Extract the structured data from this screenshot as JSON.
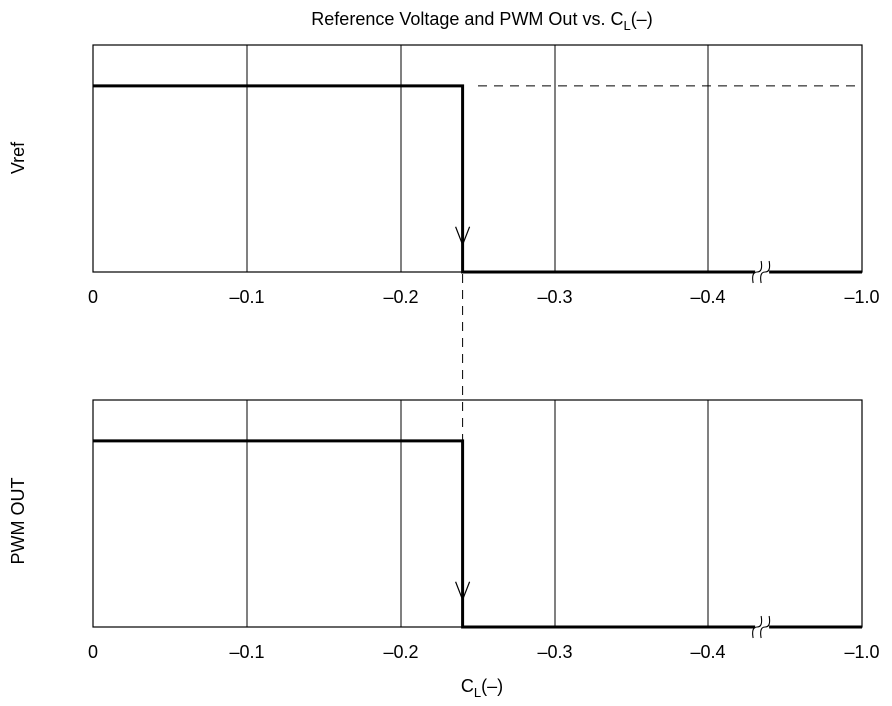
{
  "chart_data": {
    "type": "line",
    "title": {
      "main": "Reference Voltage and PWM Out vs. C",
      "sub": "L",
      "tail": "(–)"
    },
    "xlabel": {
      "main": "C",
      "sub": "L",
      "tail": "(–)"
    },
    "x_ticks": [
      "0",
      "–0.1",
      "–0.2",
      "–0.3",
      "–0.4",
      "–1.0"
    ],
    "x_tick_values": [
      0,
      -0.1,
      -0.2,
      -0.3,
      -0.4,
      -1.0
    ],
    "axis_break_between": [
      -0.4,
      -1.0
    ],
    "grid": true,
    "step_at_x": -0.24,
    "panels": [
      {
        "ylabel": "Vref",
        "ylim": [
          0,
          1
        ],
        "series": [
          {
            "style": "solid",
            "points": [
              [
                0,
                0.82
              ],
              [
                -0.24,
                0.82
              ],
              [
                -0.24,
                0
              ],
              [
                -1.0,
                0
              ]
            ]
          },
          {
            "style": "dashed",
            "points": [
              [
                -0.25,
                0.82
              ],
              [
                -1.0,
                0.82
              ]
            ]
          }
        ]
      },
      {
        "ylabel": "PWM OUT",
        "ylim": [
          0,
          1
        ],
        "series": [
          {
            "style": "solid",
            "points": [
              [
                0,
                0.82
              ],
              [
                -0.24,
                0.82
              ],
              [
                -0.24,
                0
              ],
              [
                -1.0,
                0
              ]
            ]
          }
        ]
      }
    ]
  }
}
